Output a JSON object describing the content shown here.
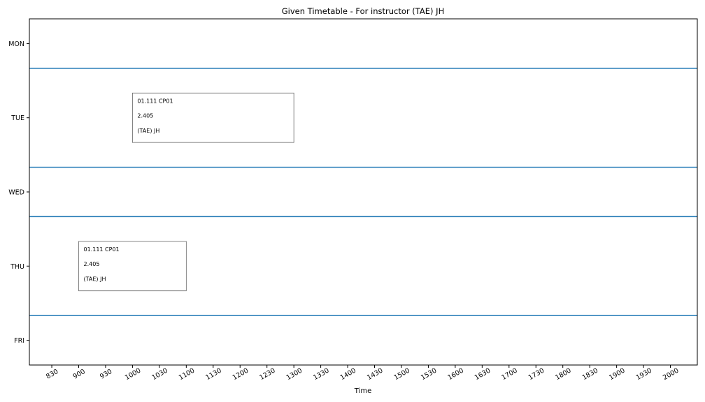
{
  "chart_data": {
    "type": "timetable",
    "title": "Given Timetable - For instructor (TAE) JH",
    "xlabel": "Time",
    "ylabel": "",
    "days": [
      "MON",
      "TUE",
      "WED",
      "THU",
      "FRI"
    ],
    "day_row_heights": [
      1,
      2,
      1,
      2,
      1
    ],
    "x_ticks": [
      "830",
      "900",
      "930",
      "1000",
      "1030",
      "1100",
      "1130",
      "1200",
      "1230",
      "1300",
      "1330",
      "1400",
      "1430",
      "1500",
      "1530",
      "1600",
      "1630",
      "1700",
      "1730",
      "1800",
      "1830",
      "1900",
      "1930",
      "2000"
    ],
    "x_tick_minutes": [
      510,
      540,
      570,
      600,
      630,
      660,
      690,
      720,
      750,
      780,
      810,
      840,
      870,
      900,
      930,
      960,
      990,
      1020,
      1050,
      1080,
      1110,
      1140,
      1170,
      1200
    ],
    "x_range_minutes": [
      485,
      1230
    ],
    "separator_color": "#1f77b4",
    "events": [
      {
        "day": "TUE",
        "start": "1000",
        "end": "1300",
        "start_min": 600,
        "end_min": 780,
        "lines": [
          "01.111 CP01",
          "2.405",
          "(TAE) JH"
        ]
      },
      {
        "day": "THU",
        "start": "900",
        "end": "1100",
        "start_min": 540,
        "end_min": 660,
        "lines": [
          "01.111 CP01",
          "2.405",
          "(TAE) JH"
        ]
      }
    ]
  }
}
